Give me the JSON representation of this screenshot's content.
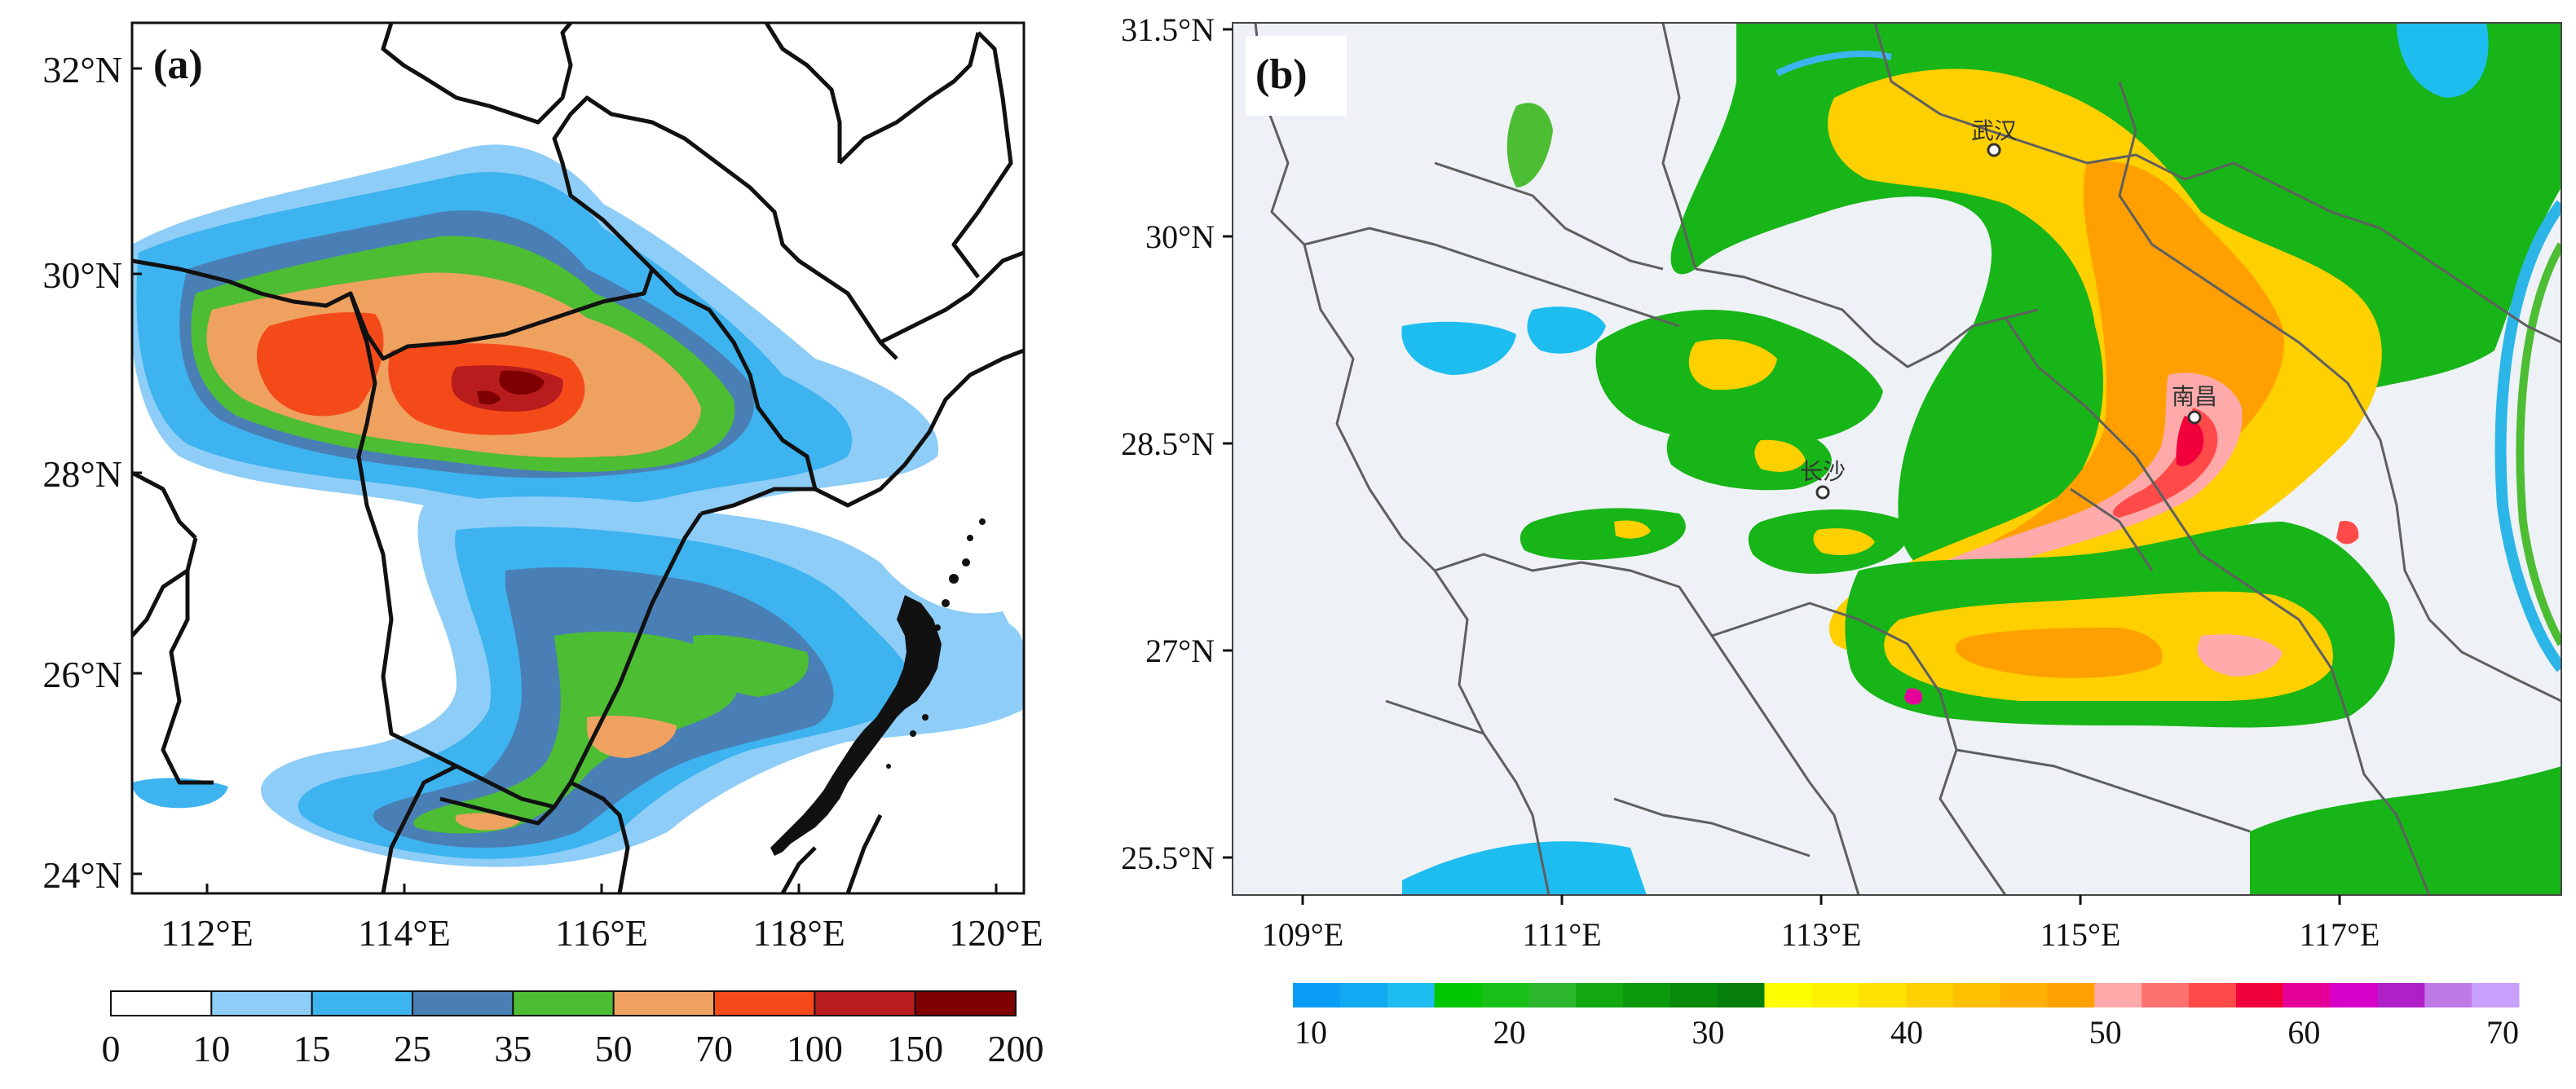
{
  "panel_a": {
    "label": "(a)",
    "lon_ticks": [
      "112°E",
      "114°E",
      "116°E",
      "118°E",
      "120°E"
    ],
    "lat_ticks": [
      "32°N",
      "30°N",
      "28°N",
      "26°N",
      "24°N"
    ],
    "colorbar": {
      "levels": [
        "0",
        "10",
        "15",
        "25",
        "35",
        "50",
        "70",
        "100",
        "150",
        "200"
      ],
      "colors": [
        "#ffffff",
        "#8dcdf7",
        "#3db3ef",
        "#4a7fb5",
        "#4dbd33",
        "#efa160",
        "#f44a1a",
        "#b91c1c",
        "#7f0000"
      ]
    }
  },
  "panel_b": {
    "label": "(b)",
    "lon_ticks": [
      "109°E",
      "111°E",
      "113°E",
      "115°E",
      "117°E"
    ],
    "lat_ticks": [
      "31.5°N",
      "30°N",
      "28.5°N",
      "27°N",
      "25.5°N"
    ],
    "cities": [
      "武汉",
      "南昌",
      "长沙"
    ],
    "colorbar": {
      "labels": [
        "10",
        "20",
        "30",
        "40",
        "50",
        "60",
        "70"
      ],
      "colors": [
        "#0a9df5",
        "#11a9f2",
        "#1ebdf0",
        "#00c800",
        "#18c118",
        "#2cb62c",
        "#12a812",
        "#0c9a0c",
        "#0a8a0a",
        "#06800a",
        "#ffff00",
        "#fff200",
        "#ffe100",
        "#ffd000",
        "#ffc000",
        "#ffb000",
        "#ffa000",
        "#ffaaaa",
        "#ff7070",
        "#ff4a4a",
        "#f2003c",
        "#e6009a",
        "#d600c8",
        "#b020c8",
        "#c07ae8",
        "#c8a0ff"
      ]
    }
  }
}
